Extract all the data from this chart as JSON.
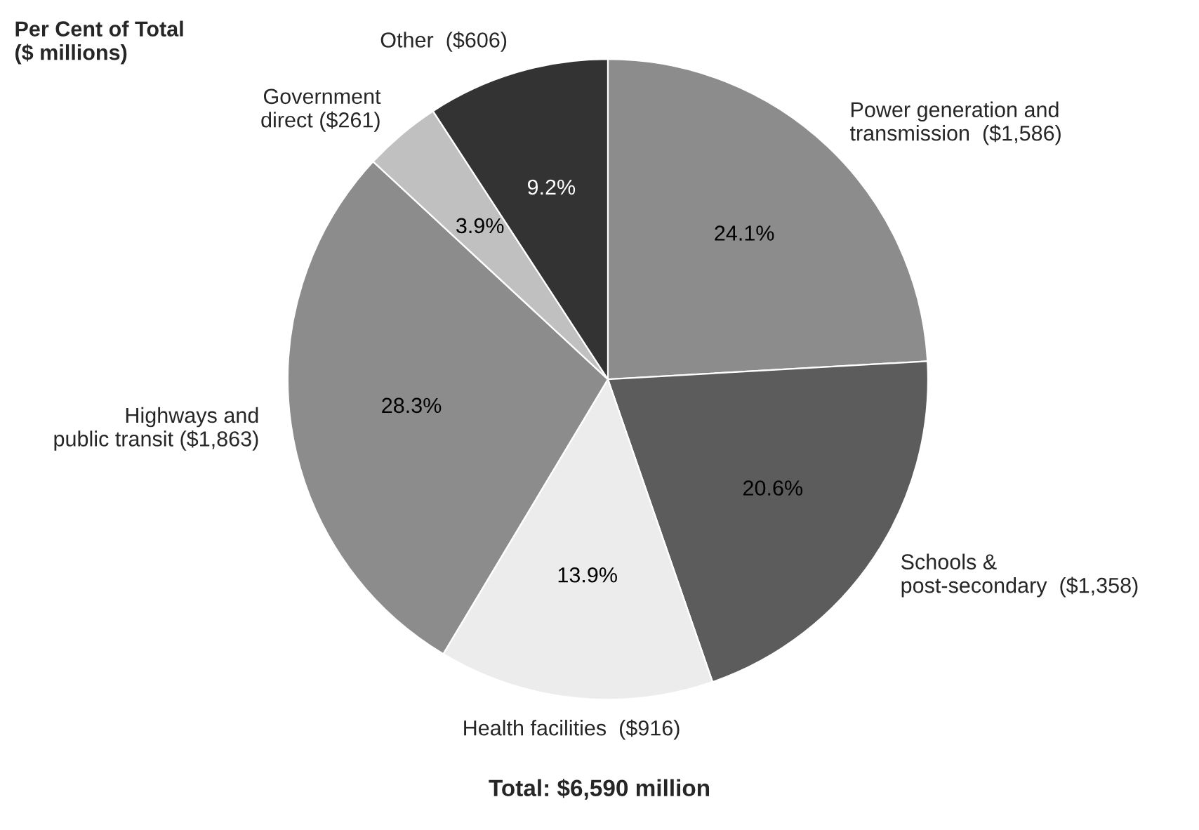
{
  "chart_data": {
    "type": "pie",
    "subtitle": "Per Cent of Total\n($ millions)",
    "categories": [
      "Power generation and\ntransmission  ($1,586)",
      "Schools &\npost-secondary  ($1,358)",
      "Health facilities  ($916)",
      "Highways and\npublic transit ($1,863)",
      "Government\ndirect ($261)",
      "Other  ($606)"
    ],
    "values": [
      24.1,
      20.6,
      13.9,
      28.3,
      3.9,
      9.2
    ],
    "value_labels": [
      "24.1%",
      "20.6%",
      "13.9%",
      "28.3%",
      "3.9%",
      "9.2%"
    ],
    "colors": [
      "#8c8c8c",
      "#5c5c5c",
      "#ececec",
      "#8c8c8c",
      "#c0c0c0",
      "#333333"
    ],
    "annotations": [
      "Total: $6,590 million"
    ],
    "legend": false
  }
}
